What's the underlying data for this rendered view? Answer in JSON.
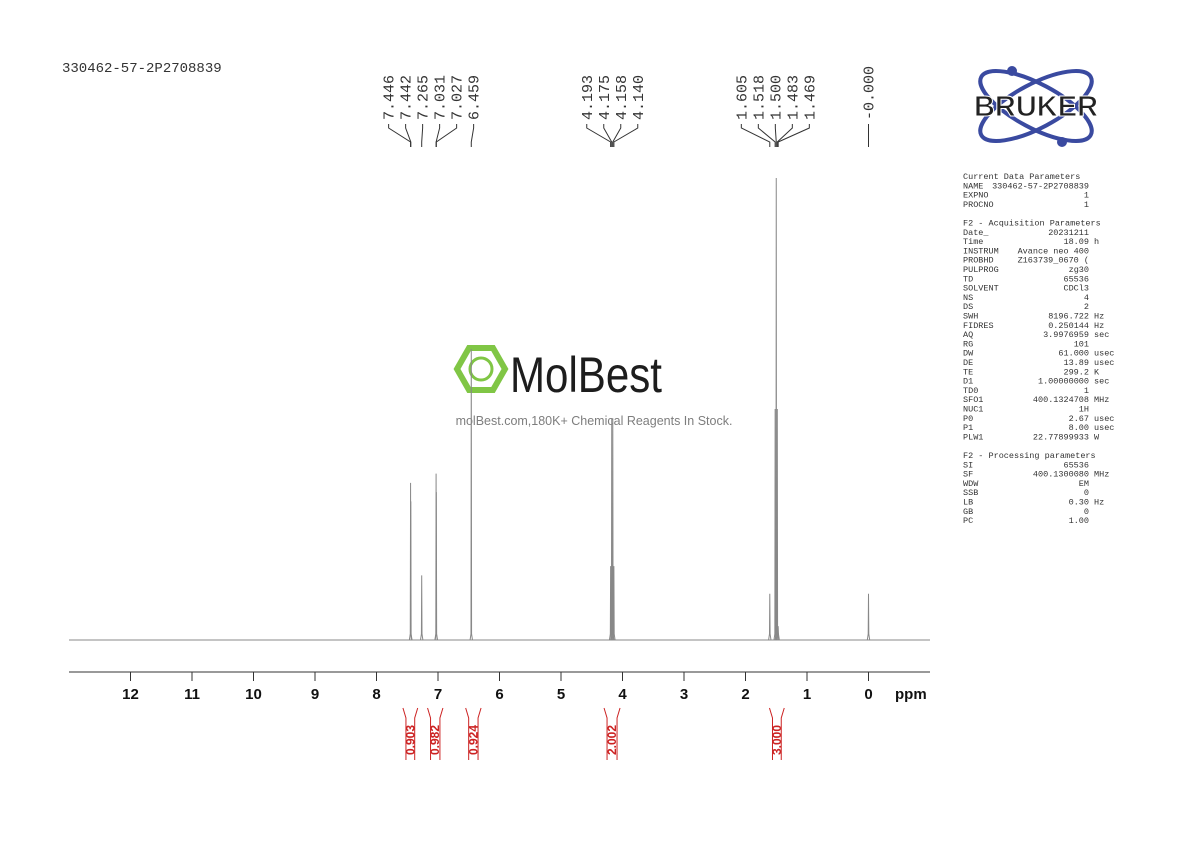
{
  "sample": "330462-57-2P2708839",
  "watermark": {
    "brand": "MolBest",
    "tagline": "molBest.com,180K+ Chemical Reagents In Stock."
  },
  "logo": "BRUKER",
  "parameters": [
    {
      "title": "Current Data Parameters",
      "rows": [
        [
          "NAME",
          "330462-57-2P2708839",
          ""
        ],
        [
          "EXPNO",
          "1",
          ""
        ],
        [
          "PROCNO",
          "1",
          ""
        ]
      ]
    },
    {
      "title": "F2 - Acquisition Parameters",
      "rows": [
        [
          "Date_",
          "20231211",
          ""
        ],
        [
          "Time",
          "18.09",
          "h"
        ],
        [
          "INSTRUM",
          "Avance neo 400",
          ""
        ],
        [
          "PROBHD",
          "Z163739_0670 (",
          ""
        ],
        [
          "PULPROG",
          "zg30",
          ""
        ],
        [
          "TD",
          "65536",
          ""
        ],
        [
          "SOLVENT",
          "CDCl3",
          ""
        ],
        [
          "NS",
          "4",
          ""
        ],
        [
          "DS",
          "2",
          ""
        ],
        [
          "SWH",
          "8196.722",
          "Hz"
        ],
        [
          "FIDRES",
          "0.250144",
          "Hz"
        ],
        [
          "AQ",
          "3.9976959",
          "sec"
        ],
        [
          "RG",
          "101",
          ""
        ],
        [
          "DW",
          "61.000",
          "usec"
        ],
        [
          "DE",
          "13.89",
          "usec"
        ],
        [
          "TE",
          "299.2",
          "K"
        ],
        [
          "D1",
          "1.00000000",
          "sec"
        ],
        [
          "TD0",
          "1",
          ""
        ],
        [
          "SFO1",
          "400.1324708",
          "MHz"
        ],
        [
          "NUC1",
          "1H",
          ""
        ],
        [
          "P0",
          "2.67",
          "usec"
        ],
        [
          "P1",
          "8.00",
          "usec"
        ],
        [
          "PLW1",
          "22.77899933",
          "W"
        ]
      ]
    },
    {
      "title": "F2 - Processing parameters",
      "rows": [
        [
          "SI",
          "65536",
          ""
        ],
        [
          "SF",
          "400.1300080",
          "MHz"
        ],
        [
          "WDW",
          "EM",
          ""
        ],
        [
          "SSB",
          "0",
          ""
        ],
        [
          "LB",
          "0.30",
          "Hz"
        ],
        [
          "GB",
          "0",
          ""
        ],
        [
          "PC",
          "1.00",
          ""
        ]
      ]
    }
  ],
  "chart_data": {
    "type": "spectrum",
    "x_label": "ppm",
    "xlim": [
      13,
      -1
    ],
    "xticks": [
      12,
      11,
      10,
      9,
      8,
      7,
      6,
      5,
      4,
      3,
      2,
      1,
      0
    ],
    "ylim": [
      0,
      100
    ],
    "color": "#888888",
    "peaks": {
      "ppm": [
        7.446,
        7.442,
        7.265,
        7.031,
        7.027,
        6.459,
        4.193,
        4.175,
        4.158,
        4.14,
        1.605,
        1.518,
        1.5,
        1.483,
        1.469,
        0
      ],
      "labels": [
        "7.446",
        "7.442",
        "7.265",
        "7.031",
        "7.027",
        "6.459",
        "4.193",
        "4.175",
        "4.158",
        "4.140",
        "1.605",
        "1.518",
        "1.500",
        "1.483",
        "1.469",
        "-0.000"
      ],
      "heights": [
        34,
        30,
        14,
        36,
        32,
        63,
        16,
        48,
        48,
        16,
        10,
        50,
        100,
        50,
        3,
        10
      ]
    },
    "integrals": {
      "ranges": [
        [
          7.57,
          7.33
        ],
        [
          7.17,
          6.92
        ],
        [
          6.55,
          6.3
        ],
        [
          4.3,
          4.04
        ],
        [
          1.61,
          1.37
        ]
      ],
      "values": [
        0.903,
        0.982,
        0.924,
        2.002,
        3.0
      ],
      "value_labels": [
        "0.903",
        "0.982",
        "0.924",
        "2.002",
        "3.000"
      ],
      "color": "#cc2222"
    }
  }
}
